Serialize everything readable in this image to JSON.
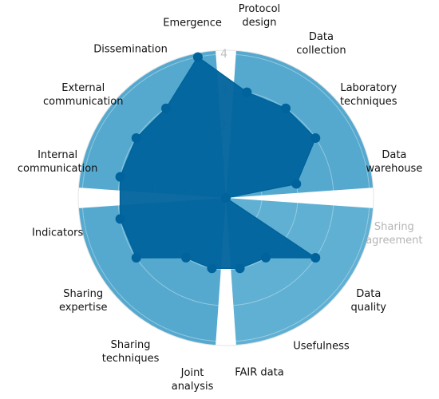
{
  "chart_data": {
    "type": "radar",
    "categories": [
      "Protocol\ndesign",
      "Data\ncollection",
      "Laboratory\ntechniques",
      "Data\nwarehouse",
      "Sharing\nagreement",
      "Data\nquality",
      "Usefulness",
      "FAIR data",
      "Joint\nanalysis",
      "Sharing\ntechniques",
      "Sharing\nexpertise",
      "Indicators",
      "Internal\ncommunication",
      "External\ncommunication",
      "Dissemination",
      "Emergence"
    ],
    "category_colors": [
      "#111111",
      "#111111",
      "#111111",
      "#111111",
      "#b5b5b5",
      "#111111",
      "#111111",
      "#111111",
      "#111111",
      "#111111",
      "#111111",
      "#111111",
      "#111111",
      "#111111",
      "#111111",
      "#111111"
    ],
    "values": [
      3,
      3,
      3,
      2,
      0,
      3,
      2,
      2,
      2,
      2,
      3,
      3,
      3,
      3,
      3,
      4
    ],
    "color": "#00639c",
    "rlim": [
      0,
      4
    ],
    "rticks": [
      1,
      2,
      3,
      4
    ],
    "grid": true
  }
}
